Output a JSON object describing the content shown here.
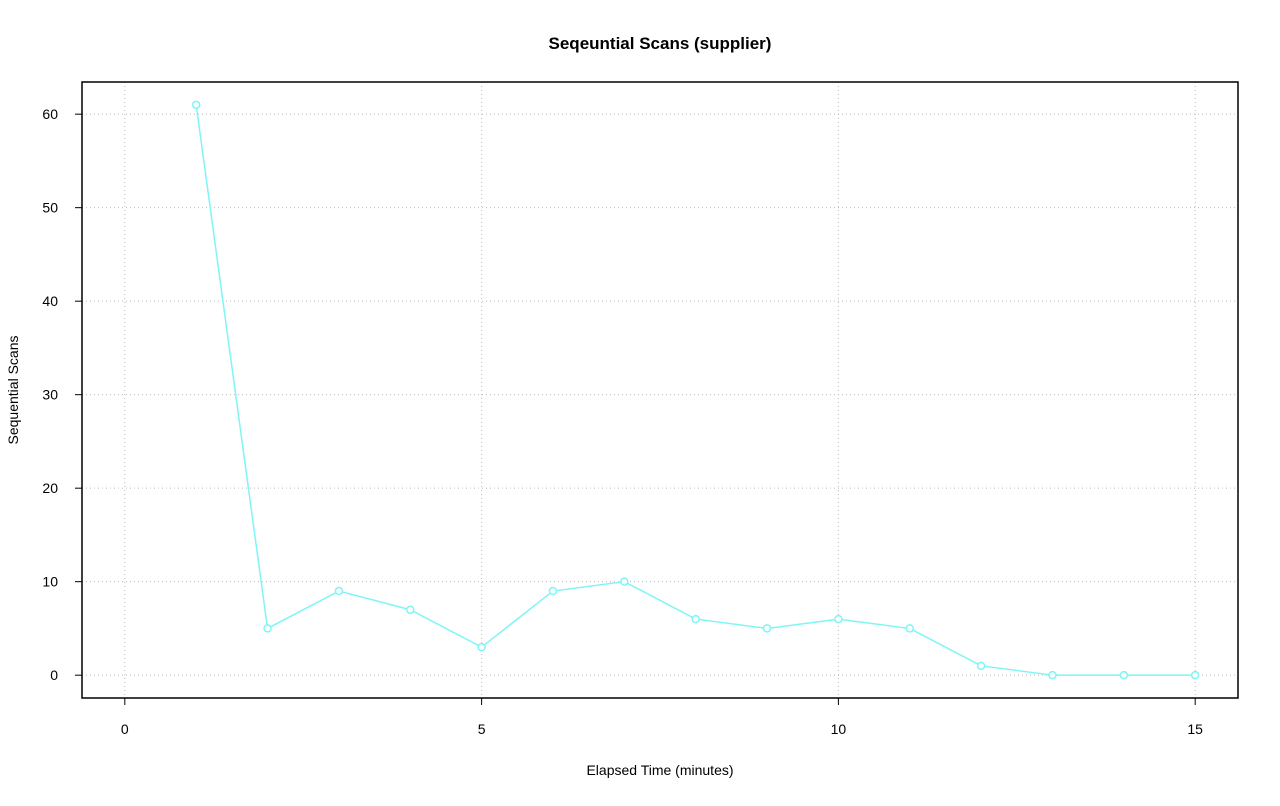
{
  "chart_data": {
    "type": "line",
    "title": "Seqeuntial Scans (supplier)",
    "x_label": "Elapsed Time (minutes)",
    "y_label": "Sequential Scans",
    "x": [
      1,
      2,
      3,
      4,
      5,
      6,
      7,
      8,
      9,
      10,
      11,
      12,
      13,
      14,
      15
    ],
    "series": [
      {
        "color": "#7ff5f5",
        "values": [
          61,
          5,
          9,
          7,
          3,
          9,
          10,
          6,
          5,
          6,
          5,
          1,
          0,
          0,
          0
        ]
      }
    ],
    "xlim": [
      -0.6,
      15.6
    ],
    "xticks": [
      0,
      5,
      10,
      15
    ],
    "ylim": [
      -2.44,
      63.44
    ],
    "yticks": [
      0,
      10,
      20,
      30,
      40,
      50,
      60
    ],
    "grid": true
  }
}
